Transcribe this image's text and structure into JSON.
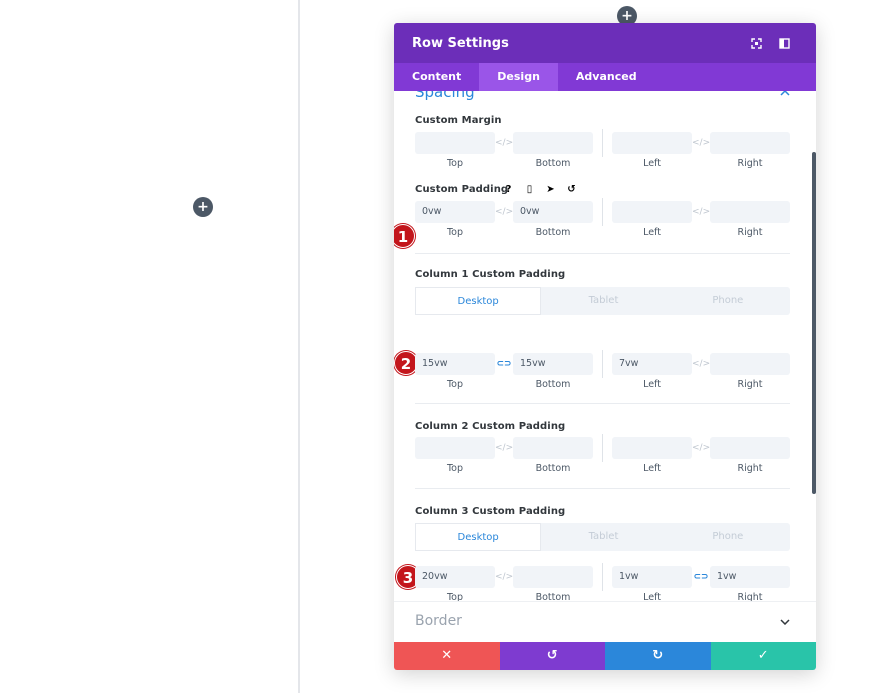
{
  "colors": {
    "header": "#6c2eb9",
    "tabs": "#8139d5",
    "accent": "#2b87da",
    "cancel": "#ef5555",
    "undo": "#7e3bd0",
    "redo": "#2b87da",
    "save": "#29c4a9",
    "marker": "#c3161c"
  },
  "modal": {
    "title": "Row Settings",
    "header_icons": [
      "expand-icon",
      "sidebar-icon"
    ],
    "tabs": [
      {
        "label": "Content",
        "active": false
      },
      {
        "label": "Design",
        "active": true
      },
      {
        "label": "Advanced",
        "active": false
      }
    ]
  },
  "spacing": {
    "title": "Spacing",
    "custom_margin": {
      "label": "Custom Margin",
      "top": "",
      "bottom": "",
      "left": "",
      "right": ""
    },
    "custom_padding": {
      "label": "Custom Padding",
      "icons": [
        "?",
        "▯",
        "➤",
        "↺"
      ],
      "top": "0vw",
      "bottom": "0vw",
      "left": "",
      "right": ""
    },
    "col1_padding": {
      "label": "Column 1 Custom Padding",
      "top": "15vw",
      "bottom": "15vw",
      "left": "7vw",
      "right": ""
    },
    "col2_padding": {
      "label": "Column 2 Custom Padding",
      "top": "",
      "bottom": "",
      "left": "",
      "right": ""
    },
    "col3_padding": {
      "label": "Column 3 Custom Padding",
      "top": "20vw",
      "bottom": "",
      "left": "1vw",
      "right": "1vw"
    },
    "sub_labels": {
      "top": "Top",
      "bottom": "Bottom",
      "left": "Left",
      "right": "Right"
    },
    "device_tabs": [
      "Desktop",
      "Tablet",
      "Phone"
    ]
  },
  "border": {
    "title": "Border"
  },
  "markers": [
    "1",
    "2",
    "3"
  ],
  "footer": {
    "cancel": "✕",
    "undo": "↺",
    "redo": "↻",
    "save": "✓"
  },
  "page": {
    "add_icon": "+"
  }
}
